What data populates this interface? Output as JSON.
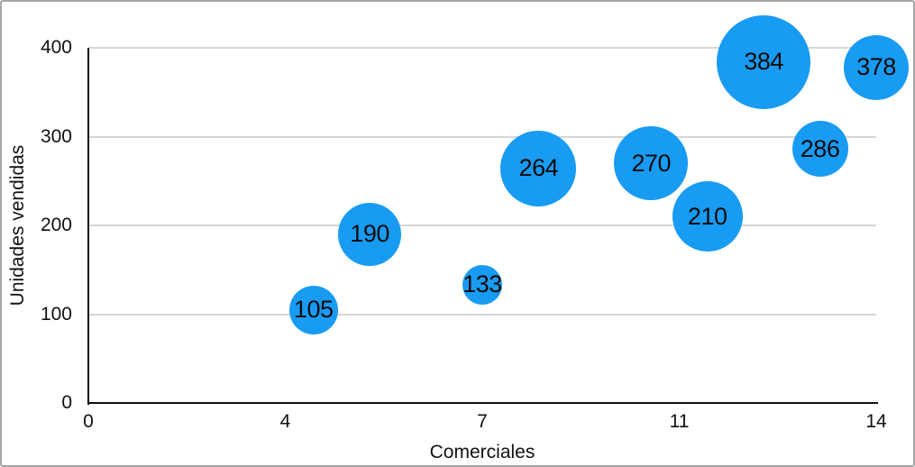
{
  "chart_data": {
    "type": "bubble",
    "title": "",
    "xlabel": "Comerciales",
    "ylabel": "Unidades vendidas",
    "xlim": [
      0,
      14
    ],
    "ylim": [
      0,
      400
    ],
    "grid": "horizontal",
    "legend": "none",
    "bubble_color": "#189BF3",
    "x_ticks": [
      {
        "value": 0,
        "label": "0"
      },
      {
        "value": 3.5,
        "label": "4"
      },
      {
        "value": 7,
        "label": "7"
      },
      {
        "value": 10.5,
        "label": "11"
      },
      {
        "value": 14,
        "label": "14"
      }
    ],
    "y_ticks": [
      {
        "value": 0,
        "label": "0"
      },
      {
        "value": 100,
        "label": "100"
      },
      {
        "value": 200,
        "label": "200"
      },
      {
        "value": 300,
        "label": "300"
      },
      {
        "value": 400,
        "label": "400"
      }
    ],
    "points": [
      {
        "x": 4,
        "y": 105,
        "label": "105",
        "radius_px": 27
      },
      {
        "x": 5,
        "y": 190,
        "label": "190",
        "radius_px": 35
      },
      {
        "x": 7,
        "y": 133,
        "label": "133",
        "radius_px": 22
      },
      {
        "x": 8,
        "y": 264,
        "label": "264",
        "radius_px": 42
      },
      {
        "x": 10,
        "y": 270,
        "label": "270",
        "radius_px": 41
      },
      {
        "x": 11,
        "y": 210,
        "label": "210",
        "radius_px": 39
      },
      {
        "x": 12,
        "y": 384,
        "label": "384",
        "radius_px": 52
      },
      {
        "x": 13,
        "y": 286,
        "label": "286",
        "radius_px": 31
      },
      {
        "x": 14,
        "y": 378,
        "label": "378",
        "radius_px": 36
      }
    ]
  }
}
